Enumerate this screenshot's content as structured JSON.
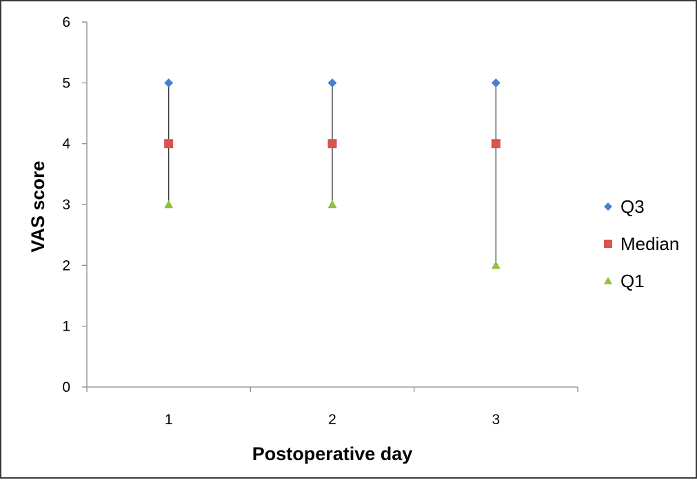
{
  "chart_data": {
    "type": "scatter",
    "title": "",
    "xlabel": "Postoperative day",
    "ylabel": "VAS score",
    "categories": [
      "1",
      "2",
      "3"
    ],
    "ylim": [
      0,
      6
    ],
    "yticks": [
      "0",
      "1",
      "2",
      "3",
      "4",
      "5",
      "6"
    ],
    "grid": false,
    "legend_position": "right",
    "series": [
      {
        "name": "Q3",
        "marker": "diamond",
        "color": "#4a7fcf",
        "values": [
          5,
          5,
          5
        ]
      },
      {
        "name": "Median",
        "marker": "square",
        "color": "#d9534f",
        "values": [
          4,
          4,
          4
        ]
      },
      {
        "name": "Q1",
        "marker": "triangle",
        "color": "#8fc13e",
        "values": [
          3,
          3,
          2
        ]
      }
    ],
    "range_lines": {
      "from_series": "Q1",
      "to_series": "Q3",
      "color": "#333333"
    }
  }
}
